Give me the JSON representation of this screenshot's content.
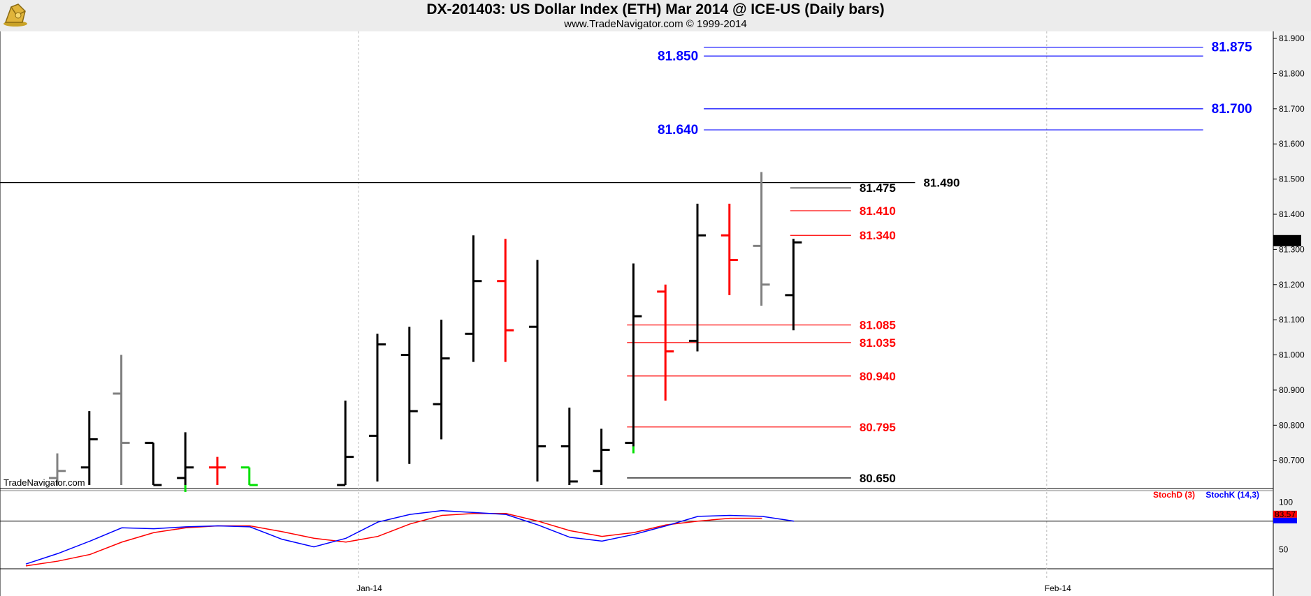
{
  "header": {
    "title": "DX-201403:  US Dollar Index (ETH) Mar 2014 @ ICE-US  (Daily bars)",
    "subtitle": "www.TradeNavigator.com © 1999-2014"
  },
  "watermark": "TradeNavigator.com",
  "colors": {
    "bg": "#ffffff",
    "header": "#ececec",
    "blue": "#0000ff",
    "red": "#ff0000",
    "black": "#000000",
    "gray": "#808080",
    "green": "#00e000",
    "axisbg": "#f0f0f0"
  },
  "chart_data": [
    {
      "type": "ohlc",
      "ylim": [
        80.62,
        81.92
      ],
      "y_ticks": [
        "81.900",
        "81.800",
        "81.700",
        "81.600",
        "81.500",
        "81.400",
        "81.300",
        "81.200",
        "81.100",
        "81.000",
        "80.900",
        "80.800",
        "80.700"
      ],
      "x_labels": [
        {
          "label": "Jan-14",
          "after_bar": 9.5
        },
        {
          "label": "Feb-14",
          "after_bar": 31
        }
      ],
      "bars": [
        {
          "o": 80.65,
          "h": 80.72,
          "l": 80.63,
          "c": 80.67,
          "color": "gray"
        },
        {
          "o": 80.68,
          "h": 80.84,
          "l": 80.63,
          "c": 80.76,
          "color": "black"
        },
        {
          "o": 80.89,
          "h": 81.0,
          "l": 80.63,
          "c": 80.75,
          "color": "gray"
        },
        {
          "o": 80.75,
          "h": 80.75,
          "l": 80.63,
          "c": 80.63,
          "color": "black"
        },
        {
          "o": 80.65,
          "h": 80.78,
          "l": 80.63,
          "c": 80.68,
          "color": "black",
          "tail": "green"
        },
        {
          "o": 80.68,
          "h": 80.71,
          "l": 80.63,
          "c": 80.68,
          "color": "red"
        },
        {
          "o": 80.68,
          "h": 80.68,
          "l": 80.63,
          "c": 80.63,
          "color": "green"
        },
        {
          "o": null,
          "h": null,
          "l": null,
          "c": null,
          "color": "none"
        },
        {
          "o": null,
          "h": null,
          "l": null,
          "c": null,
          "color": "none"
        },
        {
          "o": 80.63,
          "h": 80.87,
          "l": 80.63,
          "c": 80.71,
          "color": "black"
        },
        {
          "o": 80.77,
          "h": 81.06,
          "l": 80.64,
          "c": 81.03,
          "color": "black"
        },
        {
          "o": 81.0,
          "h": 81.08,
          "l": 80.69,
          "c": 80.84,
          "color": "black"
        },
        {
          "o": 80.86,
          "h": 81.1,
          "l": 80.76,
          "c": 80.99,
          "color": "black"
        },
        {
          "o": 81.06,
          "h": 81.34,
          "l": 80.98,
          "c": 81.21,
          "color": "black"
        },
        {
          "o": 81.21,
          "h": 81.33,
          "l": 80.98,
          "c": 81.07,
          "color": "red"
        },
        {
          "o": 81.08,
          "h": 81.27,
          "l": 80.64,
          "c": 80.74,
          "color": "black"
        },
        {
          "o": 80.74,
          "h": 80.85,
          "l": 80.63,
          "c": 80.64,
          "color": "black"
        },
        {
          "o": 80.67,
          "h": 80.79,
          "l": 80.63,
          "c": 80.73,
          "color": "black"
        },
        {
          "o": 80.75,
          "h": 81.26,
          "l": 80.74,
          "c": 81.11,
          "color": "black",
          "tail": "green"
        },
        {
          "o": 81.18,
          "h": 81.2,
          "l": 80.87,
          "c": 81.01,
          "color": "red"
        },
        {
          "o": 81.04,
          "h": 81.43,
          "l": 81.01,
          "c": 81.34,
          "color": "black"
        },
        {
          "o": 81.34,
          "h": 81.43,
          "l": 81.17,
          "c": 81.27,
          "color": "red"
        },
        {
          "o": 81.31,
          "h": 81.52,
          "l": 81.14,
          "c": 81.2,
          "color": "gray"
        },
        {
          "o": 81.17,
          "h": 81.33,
          "l": 81.07,
          "c": 81.32,
          "color": "black"
        }
      ],
      "price_tag": "81.325",
      "levels": [
        {
          "value": 81.875,
          "label": "81.875",
          "color": "blue",
          "from_bar": 20.2,
          "to_bar": 35.8,
          "label_pos": "right"
        },
        {
          "value": 81.85,
          "label": "81.850",
          "color": "blue",
          "from_bar": 20.2,
          "to_bar": 35.8,
          "label_pos": "left"
        },
        {
          "value": 81.7,
          "label": "81.700",
          "color": "blue",
          "from_bar": 20.2,
          "to_bar": 35.8,
          "label_pos": "right"
        },
        {
          "value": 81.64,
          "label": "81.640",
          "color": "blue",
          "from_bar": 20.2,
          "to_bar": 35.8,
          "label_pos": "left"
        },
        {
          "value": 81.49,
          "label": "81.490",
          "color": "black",
          "from_bar": -0.8,
          "to_bar": 26.8,
          "label_pos": "right"
        },
        {
          "value": 81.475,
          "label": "81.475",
          "color": "black",
          "from_bar": 22.9,
          "to_bar": 24.8,
          "label_pos": "right"
        },
        {
          "value": 81.41,
          "label": "81.410",
          "color": "red",
          "from_bar": 22.9,
          "to_bar": 24.8,
          "label_pos": "right"
        },
        {
          "value": 81.34,
          "label": "81.340",
          "color": "red",
          "from_bar": 22.9,
          "to_bar": 24.8,
          "label_pos": "right"
        },
        {
          "value": 81.085,
          "label": "81.085",
          "color": "red",
          "from_bar": 17.8,
          "to_bar": 24.8,
          "label_pos": "right"
        },
        {
          "value": 81.035,
          "label": "81.035",
          "color": "red",
          "from_bar": 17.8,
          "to_bar": 24.8,
          "label_pos": "right"
        },
        {
          "value": 80.94,
          "label": "80.940",
          "color": "red",
          "from_bar": 17.8,
          "to_bar": 24.8,
          "label_pos": "right"
        },
        {
          "value": 80.795,
          "label": "80.795",
          "color": "red",
          "from_bar": 17.8,
          "to_bar": 24.8,
          "label_pos": "right"
        },
        {
          "value": 80.65,
          "label": "80.650",
          "color": "black",
          "from_bar": 17.8,
          "to_bar": 24.8,
          "label_pos": "right"
        }
      ]
    },
    {
      "type": "line",
      "ylim": [
        30,
        112
      ],
      "y_ticks": [
        "100",
        "50"
      ],
      "reference_line": 80,
      "series": [
        {
          "name": "StochD (3)",
          "color": "red",
          "values": [
            33,
            38,
            45,
            58,
            68,
            73,
            75,
            75,
            69,
            62,
            58,
            64,
            77,
            86,
            88,
            88,
            80,
            70,
            64,
            68,
            76,
            80,
            83,
            83
          ]
        },
        {
          "name": "StochK (14,3)",
          "color": "blue",
          "values": [
            35,
            46,
            59,
            73,
            72,
            74,
            75,
            74,
            61,
            53,
            62,
            79,
            87,
            91,
            89,
            87,
            76,
            63,
            59,
            66,
            75,
            85,
            86,
            85,
            80
          ]
        }
      ],
      "stochK_partial": true,
      "tag": "83.57"
    }
  ]
}
